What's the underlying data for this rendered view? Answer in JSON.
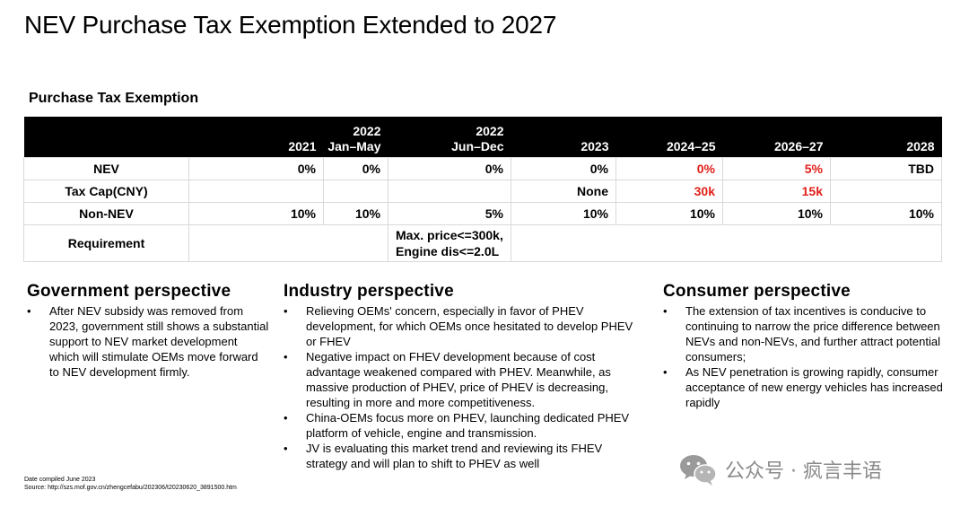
{
  "title": "NEV Purchase Tax Exemption Extended to 2027",
  "table_title": "Purchase Tax Exemption",
  "headers": [
    {
      "line1": "",
      "line2": ""
    },
    {
      "line1": "",
      "line2": "2021"
    },
    {
      "line1": "2022",
      "line2": "Jan–May"
    },
    {
      "line1": "2022",
      "line2": "Jun–Dec"
    },
    {
      "line1": "",
      "line2": "2023"
    },
    {
      "line1": "",
      "line2": "2024–25"
    },
    {
      "line1": "",
      "line2": "2026–27"
    },
    {
      "line1": "",
      "line2": "2028"
    }
  ],
  "rows": {
    "nev": {
      "label": "NEV",
      "values": [
        "0%",
        "0%",
        "0%",
        "0%",
        "0%",
        "5%",
        "TBD"
      ]
    },
    "tax_cap": {
      "label": "Tax Cap(CNY)",
      "values": [
        "",
        "",
        "",
        "None",
        "30k",
        "15k",
        ""
      ]
    },
    "non_nev": {
      "label": "Non-NEV",
      "values": [
        "10%",
        "10%",
        "5%",
        "10%",
        "10%",
        "10%",
        "10%"
      ]
    },
    "requirement": {
      "label": "Requirement",
      "line1": "Max. price<=300k,",
      "line2": "Engine dis<=2.0L"
    }
  },
  "highlight_color": "#e0201a",
  "government": {
    "heading": "Government perspective",
    "bullets": [
      "After NEV subsidy was removed from 2023, government still shows a substantial support to NEV market development which will stimulate OEMs move forward to NEV development firmly."
    ]
  },
  "industry": {
    "heading": "Industry perspective",
    "bullets": [
      "Relieving OEMs' concern, especially in favor of PHEV development, for which OEMs once hesitated to develop PHEV or FHEV",
      "Negative impact on FHEV development because of cost advantage weakened compared with PHEV. Meanwhile, as massive production of PHEV, price of PHEV is decreasing, resulting in more and more competitiveness.",
      "China-OEMs focus more on PHEV, launching dedicated PHEV platform of vehicle, engine and transmission.",
      "JV is evaluating this market trend and reviewing its FHEV strategy and will plan to shift to PHEV as well"
    ]
  },
  "consumer": {
    "heading": "Consumer perspective",
    "bullets": [
      "The extension of tax incentives is conducive to continuing to narrow the price difference between NEVs and non-NEVs, and further attract potential consumers;",
      "As NEV penetration is growing rapidly, consumer acceptance of new energy vehicles has increased rapidly"
    ]
  },
  "bullet_char": "•",
  "footnote": {
    "date": "Date compiled June 2023",
    "source": "Source: http://szs.mof.gov.cn/zhengcefabu/202306/t20230620_3891500.htm"
  },
  "watermark": {
    "text": "公众号 · 疯言丰语",
    "icon": "wechat-icon"
  }
}
